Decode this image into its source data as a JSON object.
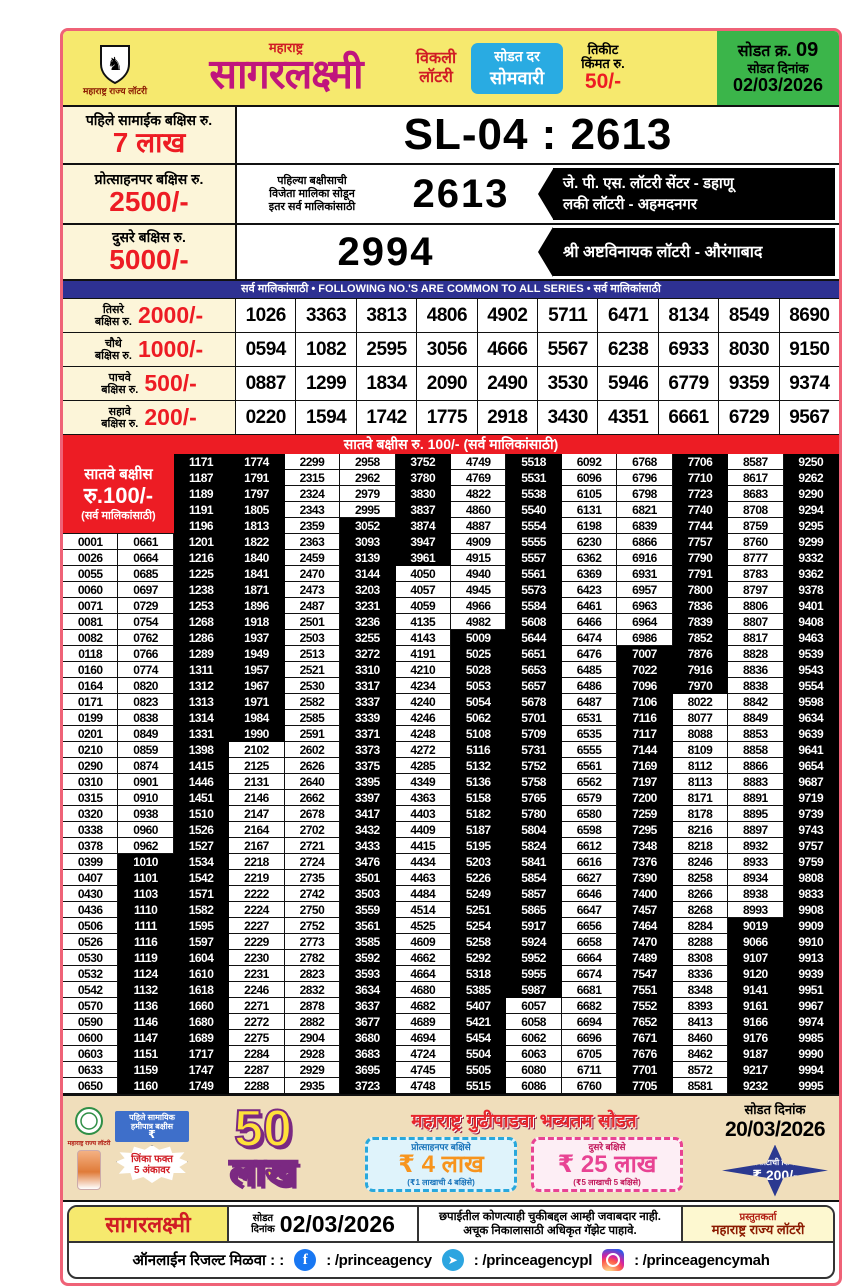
{
  "header": {
    "org": "महाराष्ट्र राज्य लॉटरी",
    "state": "महाराष्ट्र",
    "title": "सागरलक्ष्मी",
    "weekly_line1": "विकली",
    "weekly_line2": "लॉटरी",
    "draw_day_label": "सोडत दर",
    "draw_day": "सोमवारी",
    "ticket_label1": "तिकीट",
    "ticket_label2": "किंमत रु.",
    "ticket_price": "50/-",
    "draw_no_label": "सोडत क्र.",
    "draw_no": "09",
    "draw_date_label": "सोडत दिनांक",
    "draw_date": "02/03/2026"
  },
  "first_prize": {
    "label": "पहिले सामाईक बक्षिस रु.",
    "amount": "7 लाख",
    "result": "SL-04 : 2613"
  },
  "consolation_prize": {
    "label": "प्रोत्साहनपर बक्षिस रु.",
    "amount": "2500/-",
    "note_line1": "पहिल्या बक्षीसाची",
    "note_line2": "विजेता मालिका सोडून",
    "note_line3": "इतर सर्व मालिकांसाठी",
    "number": "2613",
    "seller_line1": "जे. पी. एस.  लॉटरी सेंटर -  डहाणू",
    "seller_line2": "लकी लॉटरी - अहमदनगर"
  },
  "second_prize": {
    "label": "दुसरे बक्षिस रु.",
    "amount": "5000/-",
    "number": "2994",
    "seller_line1": "श्री अष्टविनायक लॉटरी - औरंगाबाद",
    "seller_line2": ""
  },
  "common_bar": "सर्व मालिकांसाठी   •   FOLLOWING NO.'S ARE COMMON TO ALL SERIES   •   सर्व मालिकांसाठी",
  "prize_rows": [
    {
      "tier_line1": "तिसरे",
      "tier_line2": "बक्षिस रु.",
      "amount": "2000/-",
      "numbers": [
        "1026",
        "3363",
        "3813",
        "4806",
        "4902",
        "5711",
        "6471",
        "8134",
        "8549",
        "8690"
      ]
    },
    {
      "tier_line1": "चौथे",
      "tier_line2": "बक्षिस रु.",
      "amount": "1000/-",
      "numbers": [
        "0594",
        "1082",
        "2595",
        "3056",
        "4666",
        "5567",
        "6238",
        "6933",
        "8030",
        "9150"
      ]
    },
    {
      "tier_line1": "पाचवे",
      "tier_line2": "बक्षिस रु.",
      "amount": "500/-",
      "numbers": [
        "0887",
        "1299",
        "1834",
        "2090",
        "2490",
        "3530",
        "5946",
        "6779",
        "9359",
        "9374"
      ]
    },
    {
      "tier_line1": "सहावे",
      "tier_line2": "बक्षिस रु.",
      "amount": "200/-",
      "numbers": [
        "0220",
        "1594",
        "1742",
        "1775",
        "2918",
        "3430",
        "4351",
        "6661",
        "6729",
        "9567"
      ]
    }
  ],
  "seventh": {
    "bar": "सातवे बक्षीस रु. 100/-  (सर्व मालिकांसाठी)",
    "label_lines": [
      "सातवे बक्षीस",
      "रु.100/-",
      "(सर्व मालिकांसाठी)"
    ],
    "columns": [
      [
        "0001",
        "0026",
        "0055",
        "0060",
        "0071",
        "0081",
        "0082",
        "0118",
        "0160",
        "0164",
        "0171",
        "0199",
        "0201",
        "0210",
        "0290",
        "0310",
        "0315",
        "0320",
        "0338",
        "0378",
        "0399",
        "0407",
        "0430",
        "0436",
        "0506",
        "0526",
        "0530",
        "0532",
        "0542",
        "0570",
        "0590",
        "0600",
        "0603",
        "0633",
        "0650"
      ],
      [
        "0661",
        "0664",
        "0685",
        "0697",
        "0729",
        "0754",
        "0762",
        "0766",
        "0774",
        "0820",
        "0823",
        "0838",
        "0849",
        "0859",
        "0874",
        "0901",
        "0910",
        "0938",
        "0960",
        "0962",
        "1010",
        "1101",
        "1103",
        "1110",
        "1111",
        "1116",
        "1119",
        "1124",
        "1132",
        "1136",
        "1146",
        "1147",
        "1151",
        "1159",
        "1160"
      ],
      [
        "1171",
        "1187",
        "1189",
        "1191",
        "1196",
        "1201",
        "1216",
        "1225",
        "1238",
        "1253",
        "1268",
        "1286",
        "1289",
        "1311",
        "1312",
        "1313",
        "1314",
        "1331",
        "1398",
        "1415",
        "1446",
        "1451",
        "1510",
        "1526",
        "1527",
        "1534",
        "1542",
        "1571",
        "1582",
        "1595",
        "1597",
        "1604",
        "1610",
        "1618",
        "1660",
        "1680",
        "1689",
        "1717",
        "1747",
        "1749"
      ],
      [
        "1774",
        "1791",
        "1797",
        "1805",
        "1813",
        "1822",
        "1840",
        "1841",
        "1871",
        "1896",
        "1918",
        "1937",
        "1949",
        "1957",
        "1967",
        "1971",
        "1984",
        "1990",
        "2102",
        "2125",
        "2131",
        "2146",
        "2147",
        "2164",
        "2167",
        "2218",
        "2219",
        "2222",
        "2224",
        "2227",
        "2229",
        "2230",
        "2231",
        "2246",
        "2271",
        "2272",
        "2275",
        "2284",
        "2287",
        "2288"
      ],
      [
        "2299",
        "2315",
        "2324",
        "2343",
        "2359",
        "2363",
        "2459",
        "2470",
        "2473",
        "2487",
        "2501",
        "2503",
        "2513",
        "2521",
        "2530",
        "2582",
        "2585",
        "2591",
        "2602",
        "2626",
        "2640",
        "2662",
        "2678",
        "2702",
        "2721",
        "2724",
        "2735",
        "2742",
        "2750",
        "2752",
        "2773",
        "2782",
        "2823",
        "2832",
        "2878",
        "2882",
        "2904",
        "2928",
        "2929",
        "2935"
      ],
      [
        "2958",
        "2962",
        "2979",
        "2995",
        "3052",
        "3093",
        "3139",
        "3144",
        "3203",
        "3231",
        "3236",
        "3255",
        "3272",
        "3310",
        "3317",
        "3337",
        "3339",
        "3371",
        "3373",
        "3375",
        "3395",
        "3397",
        "3417",
        "3432",
        "3433",
        "3476",
        "3501",
        "3503",
        "3559",
        "3561",
        "3585",
        "3592",
        "3593",
        "3634",
        "3637",
        "3677",
        "3680",
        "3683",
        "3695",
        "3723"
      ],
      [
        "3752",
        "3780",
        "3830",
        "3837",
        "3874",
        "3947",
        "3961",
        "4050",
        "4057",
        "4059",
        "4135",
        "4143",
        "4191",
        "4210",
        "4234",
        "4240",
        "4246",
        "4248",
        "4272",
        "4285",
        "4349",
        "4363",
        "4403",
        "4409",
        "4415",
        "4434",
        "4463",
        "4484",
        "4514",
        "4525",
        "4609",
        "4662",
        "4664",
        "4680",
        "4682",
        "4689",
        "4694",
        "4724",
        "4745",
        "4748"
      ],
      [
        "4749",
        "4769",
        "4822",
        "4860",
        "4887",
        "4909",
        "4915",
        "4940",
        "4945",
        "4966",
        "4982",
        "5009",
        "5025",
        "5028",
        "5053",
        "5054",
        "5062",
        "5108",
        "5116",
        "5132",
        "5136",
        "5158",
        "5182",
        "5187",
        "5195",
        "5203",
        "5226",
        "5249",
        "5251",
        "5254",
        "5258",
        "5292",
        "5318",
        "5385",
        "5407",
        "5421",
        "5454",
        "5504",
        "5505",
        "5515"
      ],
      [
        "5518",
        "5531",
        "5538",
        "5540",
        "5554",
        "5555",
        "5557",
        "5561",
        "5573",
        "5584",
        "5608",
        "5644",
        "5651",
        "5653",
        "5657",
        "5678",
        "5701",
        "5709",
        "5731",
        "5752",
        "5758",
        "5765",
        "5780",
        "5804",
        "5824",
        "5841",
        "5854",
        "5857",
        "5865",
        "5917",
        "5924",
        "5952",
        "5955",
        "5987",
        "6057",
        "6058",
        "6062",
        "6063",
        "6080",
        "6086"
      ],
      [
        "6092",
        "6096",
        "6105",
        "6131",
        "6198",
        "6230",
        "6362",
        "6369",
        "6423",
        "6461",
        "6466",
        "6474",
        "6476",
        "6485",
        "6486",
        "6487",
        "6531",
        "6535",
        "6555",
        "6561",
        "6562",
        "6579",
        "6580",
        "6598",
        "6612",
        "6616",
        "6627",
        "6646",
        "6647",
        "6656",
        "6658",
        "6664",
        "6674",
        "6681",
        "6682",
        "6694",
        "6696",
        "6705",
        "6711",
        "6760"
      ],
      [
        "6768",
        "6796",
        "6798",
        "6821",
        "6839",
        "6866",
        "6916",
        "6931",
        "6957",
        "6963",
        "6964",
        "6986",
        "7007",
        "7022",
        "7096",
        "7106",
        "7116",
        "7117",
        "7144",
        "7169",
        "7197",
        "7200",
        "7259",
        "7295",
        "7348",
        "7376",
        "7390",
        "7400",
        "7457",
        "7464",
        "7470",
        "7489",
        "7547",
        "7551",
        "7552",
        "7652",
        "7671",
        "7676",
        "7701",
        "7705"
      ],
      [
        "7706",
        "7710",
        "7723",
        "7740",
        "7744",
        "7757",
        "7790",
        "7791",
        "7800",
        "7836",
        "7839",
        "7852",
        "7876",
        "7916",
        "7970",
        "8022",
        "8077",
        "8088",
        "8109",
        "8112",
        "8113",
        "8171",
        "8178",
        "8216",
        "8218",
        "8246",
        "8258",
        "8266",
        "8268",
        "8284",
        "8288",
        "8308",
        "8336",
        "8348",
        "8393",
        "8413",
        "8460",
        "8462",
        "8572",
        "8581"
      ],
      [
        "8587",
        "8617",
        "8683",
        "8708",
        "8759",
        "8760",
        "8777",
        "8783",
        "8797",
        "8806",
        "8807",
        "8817",
        "8828",
        "8836",
        "8838",
        "8842",
        "8849",
        "8853",
        "8858",
        "8866",
        "8883",
        "8891",
        "8895",
        "8897",
        "8932",
        "8933",
        "8934",
        "8938",
        "8993",
        "9019",
        "9066",
        "9107",
        "9120",
        "9141",
        "9161",
        "9166",
        "9176",
        "9187",
        "9217",
        "9232"
      ],
      [
        "9250",
        "9262",
        "9290",
        "9294",
        "9295",
        "9299",
        "9332",
        "9362",
        "9378",
        "9401",
        "9408",
        "9463",
        "9539",
        "9543",
        "9554",
        "9598",
        "9634",
        "9639",
        "9641",
        "9654",
        "9687",
        "9719",
        "9739",
        "9743",
        "9757",
        "9759",
        "9808",
        "9833",
        "9908",
        "9909",
        "9910",
        "9913",
        "9939",
        "9951",
        "9967",
        "9974",
        "9985",
        "9990",
        "9994",
        "9995"
      ]
    ]
  },
  "banner": {
    "left_org": "महाराष्ट्र राज्य लॉटरी",
    "ribbon": "पहिले सामायिक हमीपात्र बक्षीस",
    "ribbon_rupee": "₹",
    "win_note_line1": "जिंका फक्त",
    "win_note_line2": "5 अंकावर",
    "big_amount_number": "50",
    "big_amount_unit": "लाख",
    "heading": "महाराष्ट्र गुढीपाडवा भव्यतम सोडत",
    "draw_date_label": "सोडत दिनांक",
    "draw_date": "20/03/2026",
    "stamp1_label": "प्रोत्साहनपर बक्षिसे",
    "stamp1_amount": "₹ 4 लाख",
    "stamp1_sub": "(₹1 लाखाची 4 बक्षिसे)",
    "stamp2_label": "दुसरे बक्षिसे",
    "stamp2_amount": "₹ 25 लाख",
    "stamp2_sub": "(₹5 लाखाची 5 बक्षिसे)",
    "ticket_label": "तिकीटाची किंमत",
    "ticket_price": "₹ 200/-"
  },
  "footer": {
    "brand": "सागरलक्ष्मी",
    "draw_label_line1": "सोडत",
    "draw_label_line2": "दिनांक",
    "draw_date": "02/03/2026",
    "disclaimer_line1": "छपाईतील कोणत्याही चुकीबद्दल आम्ही जवाबदार नाही.",
    "disclaimer_line2": "अचूक निकालासाठी अधिकृत गॅझेट पाहावे.",
    "presenter_label": "प्रस्तुतकर्ता",
    "presenter": "महाराष्ट्र राज्य लॉटरी",
    "online_label": "ऑनलाईन रिजल्ट मिळवा : :",
    "facebook_handle": ": /princeagency",
    "telegram_handle": ": /princeagencypl",
    "instagram_handle": ": /princeagencymah"
  }
}
